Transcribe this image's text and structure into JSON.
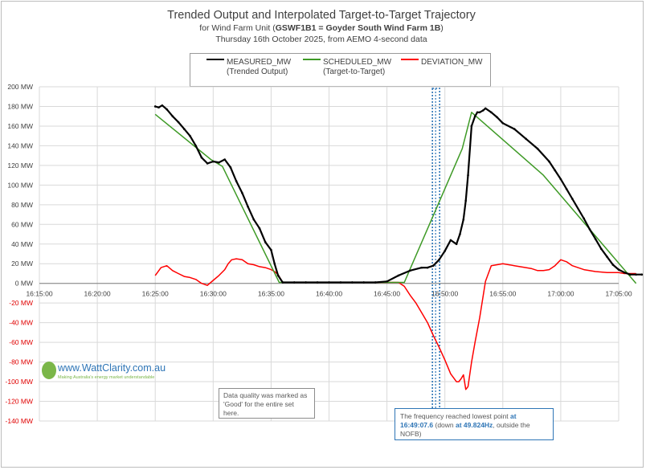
{
  "chart_data": {
    "type": "line",
    "title": "Trended Output and Interpolated Target-to-Target Trajectory",
    "subtitle_prefix": "for Wind Farm Unit (",
    "subtitle_bold": "GSWF1B1 = Goyder South Wind Farm 1B",
    "subtitle_suffix": ")",
    "subtitle2": "Thursday 16th October 2025, from AEMO 4-second data",
    "x_ticks": [
      "16:15:00",
      "16:20:00",
      "16:25:00",
      "16:30:00",
      "16:35:00",
      "16:40:00",
      "16:45:00",
      "16:50:00",
      "16:55:00",
      "17:00:00",
      "17:05:00"
    ],
    "y_ticks": [
      "200 MW",
      "180 MW",
      "160 MW",
      "140 MW",
      "120 MW",
      "100 MW",
      "80 MW",
      "60 MW",
      "40 MW",
      "20 MW",
      "0 MW",
      "-20 MW",
      "-40 MW",
      "-60 MW",
      "-80 MW",
      "-100 MW",
      "-120 MW",
      "-140 MW"
    ],
    "xlim_minutes": [
      0,
      50
    ],
    "ylim": [
      -140,
      200
    ],
    "x_unit": "minutes after 16:15:00",
    "grid": true,
    "legend_position": "top-center",
    "series": [
      {
        "key": "measured",
        "name": "MEASURED_MW",
        "name2": "(Trended Output)",
        "color": "#000000",
        "x": [
          10,
          10.3,
          10.6,
          11,
          11.5,
          12,
          12.5,
          13,
          13.5,
          14,
          14.5,
          15,
          15.5,
          16,
          16.5,
          17,
          17.5,
          18,
          18.5,
          19,
          19.5,
          20,
          20.3,
          20.6,
          21,
          22,
          23,
          24,
          25,
          26,
          27,
          28,
          29,
          30,
          31,
          32,
          33,
          33.5,
          34,
          34.5,
          35,
          35.5,
          36,
          36.3,
          36.6,
          36.8,
          37,
          37.3,
          37.6,
          37.8,
          38,
          38.3,
          38.5,
          39,
          39.5,
          40,
          41,
          42,
          43,
          44,
          44.5,
          45,
          45.5,
          46,
          47,
          47.5,
          48,
          48.5,
          49,
          49.5,
          50,
          50.5,
          51,
          51.5,
          52
        ],
        "y": [
          180,
          179,
          181,
          177,
          170,
          164,
          157,
          150,
          140,
          128,
          122,
          124,
          123,
          126,
          118,
          104,
          92,
          78,
          65,
          56,
          42,
          34,
          20,
          8,
          1,
          1,
          1,
          1,
          1,
          1,
          1,
          1,
          1,
          2,
          8,
          13,
          16,
          16,
          18,
          24,
          33,
          44,
          40,
          50,
          65,
          84,
          110,
          160,
          170,
          174,
          174,
          176,
          178,
          174,
          169,
          163,
          157,
          147,
          137,
          124,
          115,
          106,
          96,
          86,
          66,
          55,
          45,
          35,
          27,
          19,
          14,
          11,
          9,
          9,
          9
        ]
      },
      {
        "key": "scheduled",
        "name": "SCHEDULED_MW",
        "name2": "(Target-to-Target)",
        "color": "#3e9a26",
        "x": [
          10,
          14.8,
          15.8,
          20.7,
          21.5,
          31.5,
          36.5,
          37.3,
          43.5,
          51.5
        ],
        "y": [
          172,
          126,
          119,
          1,
          1,
          1,
          137,
          174,
          110,
          0
        ]
      },
      {
        "key": "deviation",
        "name": "DEVIATION_MW",
        "name2": "",
        "color": "#ff0000",
        "x": [
          10,
          10.5,
          11,
          11.5,
          12,
          12.5,
          13,
          13.5,
          14,
          14.5,
          15,
          15.5,
          16,
          16.3,
          16.6,
          17,
          17.5,
          18,
          18.5,
          19,
          19.5,
          20,
          20.3,
          20.6,
          21,
          22,
          23,
          24,
          25,
          26,
          27,
          28,
          29,
          30,
          31,
          31.5,
          32,
          32.5,
          33,
          33.5,
          34,
          34.5,
          35,
          35.5,
          36,
          36.2,
          36.4,
          36.6,
          36.8,
          37,
          37.3,
          37.6,
          38,
          38.5,
          39,
          40,
          41,
          42,
          42.5,
          43,
          43.5,
          44,
          44.5,
          45,
          45.5,
          46,
          47,
          48,
          49,
          50,
          50.5,
          51,
          51.5
        ],
        "y": [
          8,
          16,
          18,
          13,
          10,
          7,
          6,
          4,
          0,
          -2,
          3,
          8,
          14,
          20,
          24,
          25,
          24,
          20,
          19,
          17,
          16,
          14,
          12,
          9,
          1,
          1,
          1,
          1,
          1,
          1,
          1,
          1,
          1,
          1,
          1,
          -3,
          -12,
          -20,
          -30,
          -40,
          -53,
          -65,
          -78,
          -92,
          -100,
          -100,
          -97,
          -93,
          -108,
          -105,
          -80,
          -60,
          -35,
          2,
          18,
          20,
          18,
          16,
          15,
          13,
          13,
          14,
          18,
          24,
          22,
          18,
          14,
          12,
          11,
          11,
          10,
          10,
          10
        ]
      }
    ],
    "event_line_minutes": 34.2
  },
  "notes": {
    "quality": "Data quality was marked as 'Good' for the entire set here.",
    "freq_prefix": "The frequency reached lowest point ",
    "freq_at1": "at 16:49:07.6",
    "freq_mid": " (down ",
    "freq_at2": "at 49.824Hz",
    "freq_suffix": ", outside the NOFB)"
  },
  "logo": {
    "text": "www.WattClarity.com.au",
    "tagline": "Making Australia's energy market understandable"
  }
}
